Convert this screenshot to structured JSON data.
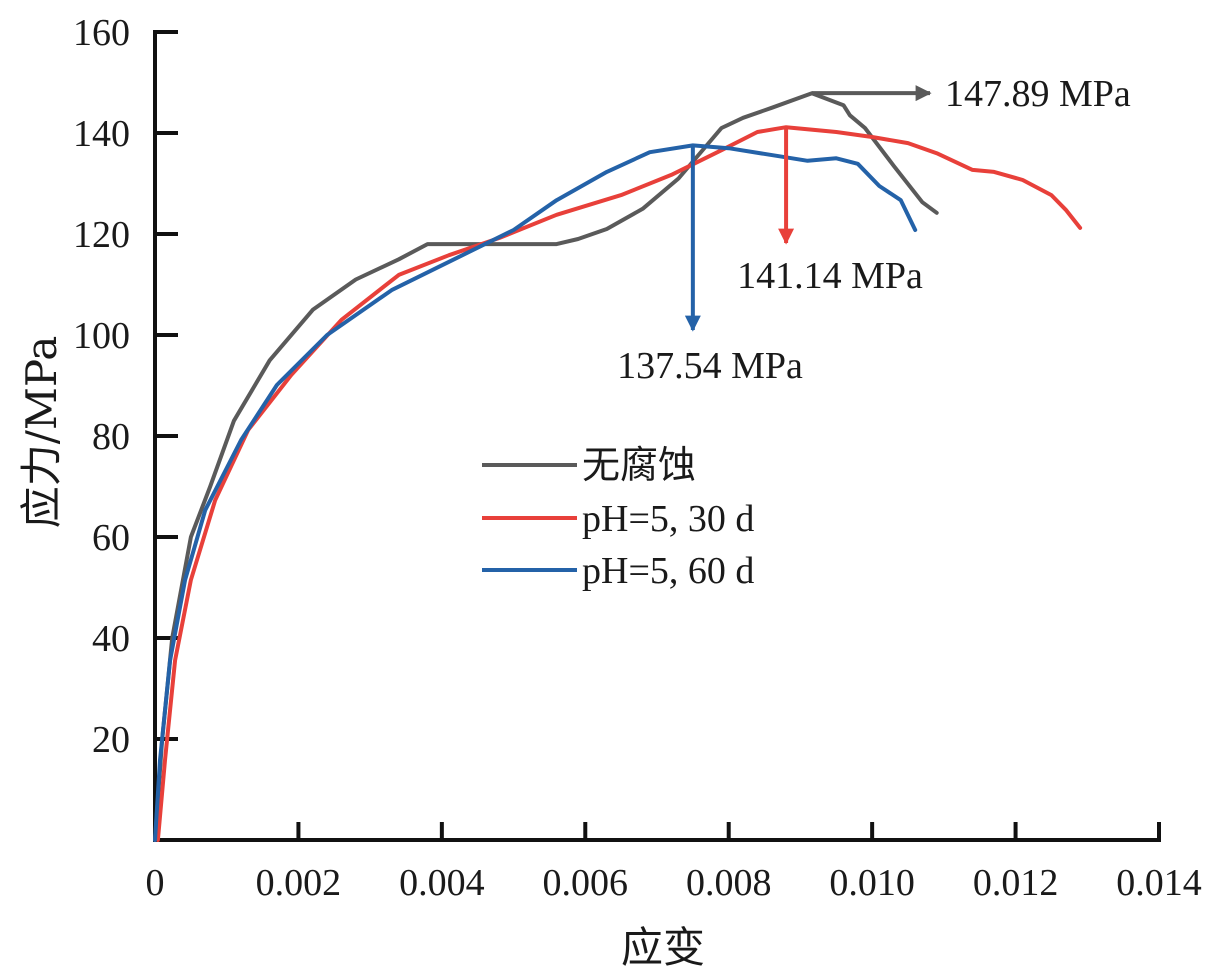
{
  "chart_data": {
    "type": "line",
    "title": "",
    "xlabel": "应变",
    "ylabel": "应力/MPa",
    "xlim": [
      0,
      0.014
    ],
    "ylim": [
      0,
      160
    ],
    "grid": false,
    "x_ticks": [
      "0",
      "0.002",
      "0.004",
      "0.006",
      "0.008",
      "0.010",
      "0.012",
      "0.014"
    ],
    "x_tick_values": [
      0,
      0.002,
      0.004,
      0.006,
      0.008,
      0.01,
      0.012,
      0.014
    ],
    "y_ticks": [
      "20",
      "40",
      "60",
      "80",
      "100",
      "120",
      "140",
      "160"
    ],
    "y_tick_values": [
      20,
      40,
      60,
      80,
      100,
      120,
      140,
      160
    ],
    "legend_position": "center",
    "series": [
      {
        "name": "无腐蚀",
        "color": "#5a5a5a",
        "points": [
          [
            0,
            0
          ],
          [
            0.0001,
            20
          ],
          [
            0.00024,
            40
          ],
          [
            0.0005,
            60
          ],
          [
            0.00077,
            70
          ],
          [
            0.0011,
            83
          ],
          [
            0.0016,
            95
          ],
          [
            0.0022,
            105
          ],
          [
            0.0028,
            111
          ],
          [
            0.0034,
            115
          ],
          [
            0.0038,
            118
          ],
          [
            0.0045,
            118
          ],
          [
            0.0056,
            118
          ],
          [
            0.0059,
            119
          ],
          [
            0.0063,
            121
          ],
          [
            0.0068,
            125
          ],
          [
            0.0073,
            131
          ],
          [
            0.0079,
            141
          ],
          [
            0.0082,
            143
          ],
          [
            0.0086,
            145
          ],
          [
            0.00916,
            147.89
          ],
          [
            0.0096,
            145.5
          ],
          [
            0.00969,
            143.5
          ],
          [
            0.0099,
            141
          ],
          [
            0.0103,
            133.5
          ],
          [
            0.0107,
            126.3
          ],
          [
            0.0109,
            124.2
          ]
        ]
      },
      {
        "name": "pH=5, 30 d",
        "color": "#e8403a",
        "points": [
          [
            4e-05,
            0
          ],
          [
            0.00014,
            15.8
          ],
          [
            0.00028,
            35.6
          ],
          [
            0.0005,
            51.5
          ],
          [
            0.00084,
            67.3
          ],
          [
            0.0013,
            81.2
          ],
          [
            0.0019,
            92.1
          ],
          [
            0.0026,
            103
          ],
          [
            0.0034,
            111.9
          ],
          [
            0.0041,
            115.8
          ],
          [
            0.0048,
            119.2
          ],
          [
            0.0056,
            123.8
          ],
          [
            0.0065,
            127.7
          ],
          [
            0.0072,
            131.7
          ],
          [
            0.0079,
            136.6
          ],
          [
            0.0084,
            140.2
          ],
          [
            0.0088,
            141.14
          ],
          [
            0.0095,
            140.2
          ],
          [
            0.01,
            139.2
          ],
          [
            0.0105,
            138
          ],
          [
            0.0109,
            136
          ],
          [
            0.0114,
            132.7
          ],
          [
            0.0117,
            132.3
          ],
          [
            0.0121,
            130.7
          ],
          [
            0.0125,
            127.7
          ],
          [
            0.0127,
            124.8
          ],
          [
            0.0129,
            121.2
          ]
        ]
      },
      {
        "name": "pH=5, 60 d",
        "color": "#2462a8",
        "points": [
          [
            0,
            0
          ],
          [
            7e-05,
            15.8
          ],
          [
            0.00021,
            35.6
          ],
          [
            0.00042,
            51.5
          ],
          [
            0.0007,
            65.3
          ],
          [
            0.0012,
            79.2
          ],
          [
            0.0017,
            90.1
          ],
          [
            0.0024,
            100
          ],
          [
            0.0033,
            108.9
          ],
          [
            0.0041,
            114.5
          ],
          [
            0.005,
            120.8
          ],
          [
            0.0056,
            126.7
          ],
          [
            0.0063,
            132.3
          ],
          [
            0.0069,
            136.2
          ],
          [
            0.0075,
            137.54
          ],
          [
            0.008,
            137
          ],
          [
            0.0087,
            135.4
          ],
          [
            0.0091,
            134.5
          ],
          [
            0.0095,
            135
          ],
          [
            0.0098,
            133.9
          ],
          [
            0.0101,
            129.5
          ],
          [
            0.0104,
            126.7
          ],
          [
            0.0106,
            120.8
          ]
        ]
      }
    ],
    "annotations": [
      {
        "text": "147.89 MPa",
        "series": "无腐蚀",
        "x": 0.00916,
        "y": 147.89,
        "arrow": "right"
      },
      {
        "text": "141.14 MPa",
        "series": "pH=5, 30 d",
        "x": 0.0088,
        "y": 141.14,
        "arrow": "down"
      },
      {
        "text": "137.54 MPa",
        "series": "pH=5, 60 d",
        "x": 0.0075,
        "y": 137.54,
        "arrow": "down"
      }
    ]
  }
}
